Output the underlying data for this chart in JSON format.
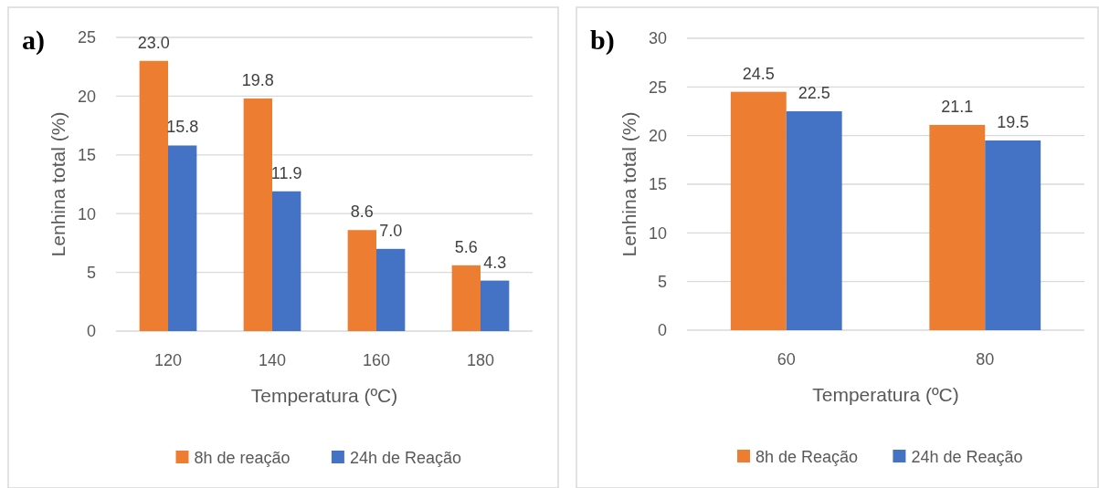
{
  "chart_data": [
    {
      "type": "bar",
      "title": "a)",
      "xlabel": "Temperatura (ºC)",
      "ylabel": "Lenhina total (%)",
      "categories": [
        "120",
        "140",
        "160",
        "180"
      ],
      "series": [
        {
          "name": "8h de reação",
          "color": "#ed7d31",
          "values": [
            23.0,
            19.8,
            8.6,
            5.6
          ],
          "value_labels": [
            "23.0",
            "19.8",
            "8.6",
            "5.6"
          ]
        },
        {
          "name": "24h de Reação",
          "color": "#4472c4",
          "values": [
            15.8,
            11.9,
            7.0,
            4.3
          ],
          "value_labels": [
            "15.8",
            "11.9",
            "7.0",
            "4.3"
          ]
        }
      ],
      "ylim": [
        0,
        25
      ],
      "yticks": [
        0,
        5,
        10,
        15,
        20,
        25
      ],
      "grid": "y",
      "legend": "bottom"
    },
    {
      "type": "bar",
      "title": "b)",
      "xlabel": "Temperatura (ºC)",
      "ylabel": "Lenhina total (%)",
      "categories": [
        "60",
        "80"
      ],
      "series": [
        {
          "name": "8h de Reação",
          "color": "#ed7d31",
          "values": [
            24.5,
            21.1
          ],
          "value_labels": [
            "24.5",
            "21.1"
          ]
        },
        {
          "name": "24h de Reação",
          "color": "#4472c4",
          "values": [
            22.5,
            19.5
          ],
          "value_labels": [
            "22.5",
            "19.5"
          ]
        }
      ],
      "ylim": [
        0,
        30
      ],
      "yticks": [
        0,
        5,
        10,
        15,
        20,
        25,
        30
      ],
      "grid": "y",
      "legend": "bottom"
    }
  ]
}
